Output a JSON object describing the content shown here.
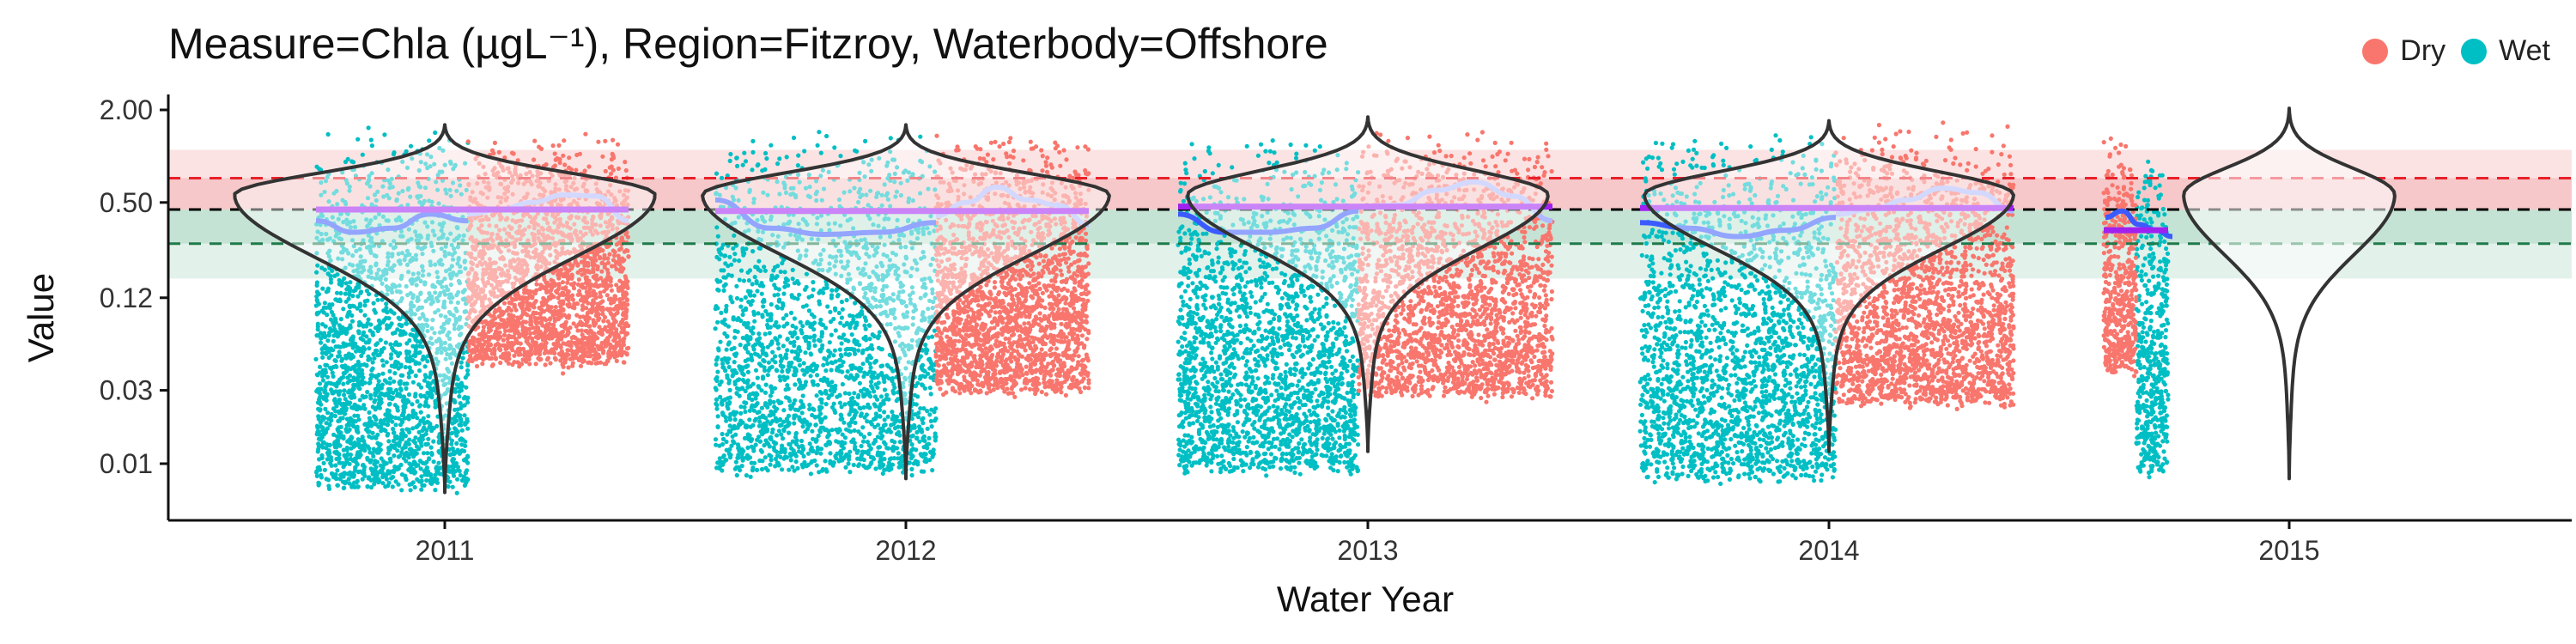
{
  "chart_data": {
    "type": "scatter",
    "title": "Measure=Chla (µgL⁻¹), Region=Fitzroy, Waterbody=Offshore",
    "xlabel": "Water Year",
    "ylabel": "Value",
    "y_scale": "log",
    "ylim": [
      0.0055,
      2.4
    ],
    "y_ticks": [
      2.0,
      0.5,
      0.12,
      0.03,
      0.01
    ],
    "y_tick_labels": [
      "2.00",
      "0.50",
      "0.12",
      "0.03",
      "0.01"
    ],
    "categories": [
      "2011",
      "2012",
      "2013",
      "2014",
      "2015"
    ],
    "legend": {
      "position": "top-right",
      "entries": [
        {
          "name": "Dry",
          "color": "#F8766D"
        },
        {
          "name": "Wet",
          "color": "#00BFC4"
        }
      ]
    },
    "guidelines": {
      "red_dashed": 0.72,
      "black_dashed": 0.45,
      "green_dashed": 0.27,
      "red_band_outer": [
        0.45,
        1.1
      ],
      "red_band_inner": [
        0.45,
        0.72
      ],
      "green_band_inner": [
        0.27,
        0.45
      ],
      "green_band_outer": [
        0.16,
        0.45
      ]
    },
    "colors": {
      "dry": "#F8766D",
      "wet": "#00BFC4",
      "trend_dark": "#3B5BFF",
      "trend_light": "#B0B8FF",
      "median": "#A020F0",
      "violin": "#333333",
      "red_line": "#E8212A",
      "green_line": "#1F7A4A",
      "black_line": "#000000"
    },
    "years": [
      {
        "label": "2011",
        "wet_range": [
          0.007,
          1.5
        ],
        "dry_range": [
          0.045,
          1.4
        ],
        "median": 0.45,
        "violin_min": 0.0065,
        "violin_max": 1.6
      },
      {
        "label": "2012",
        "wet_range": [
          0.009,
          1.5
        ],
        "dry_range": [
          0.03,
          1.45
        ],
        "median": 0.44,
        "violin_min": 0.008,
        "violin_max": 1.6
      },
      {
        "label": "2013",
        "wet_range": [
          0.009,
          1.4
        ],
        "dry_range": [
          0.028,
          1.5
        ],
        "median": 0.47,
        "violin_min": 0.012,
        "violin_max": 1.8
      },
      {
        "label": "2014",
        "wet_range": [
          0.008,
          1.5
        ],
        "dry_range": [
          0.025,
          1.55
        ],
        "median": 0.46,
        "violin_min": 0.012,
        "violin_max": 1.7
      },
      {
        "label": "2015",
        "wet_range": [
          0.009,
          1.1
        ],
        "dry_range": [
          0.04,
          1.3
        ],
        "median": 0.33,
        "violin_min": 0.008,
        "violin_max": 2.05
      }
    ]
  }
}
